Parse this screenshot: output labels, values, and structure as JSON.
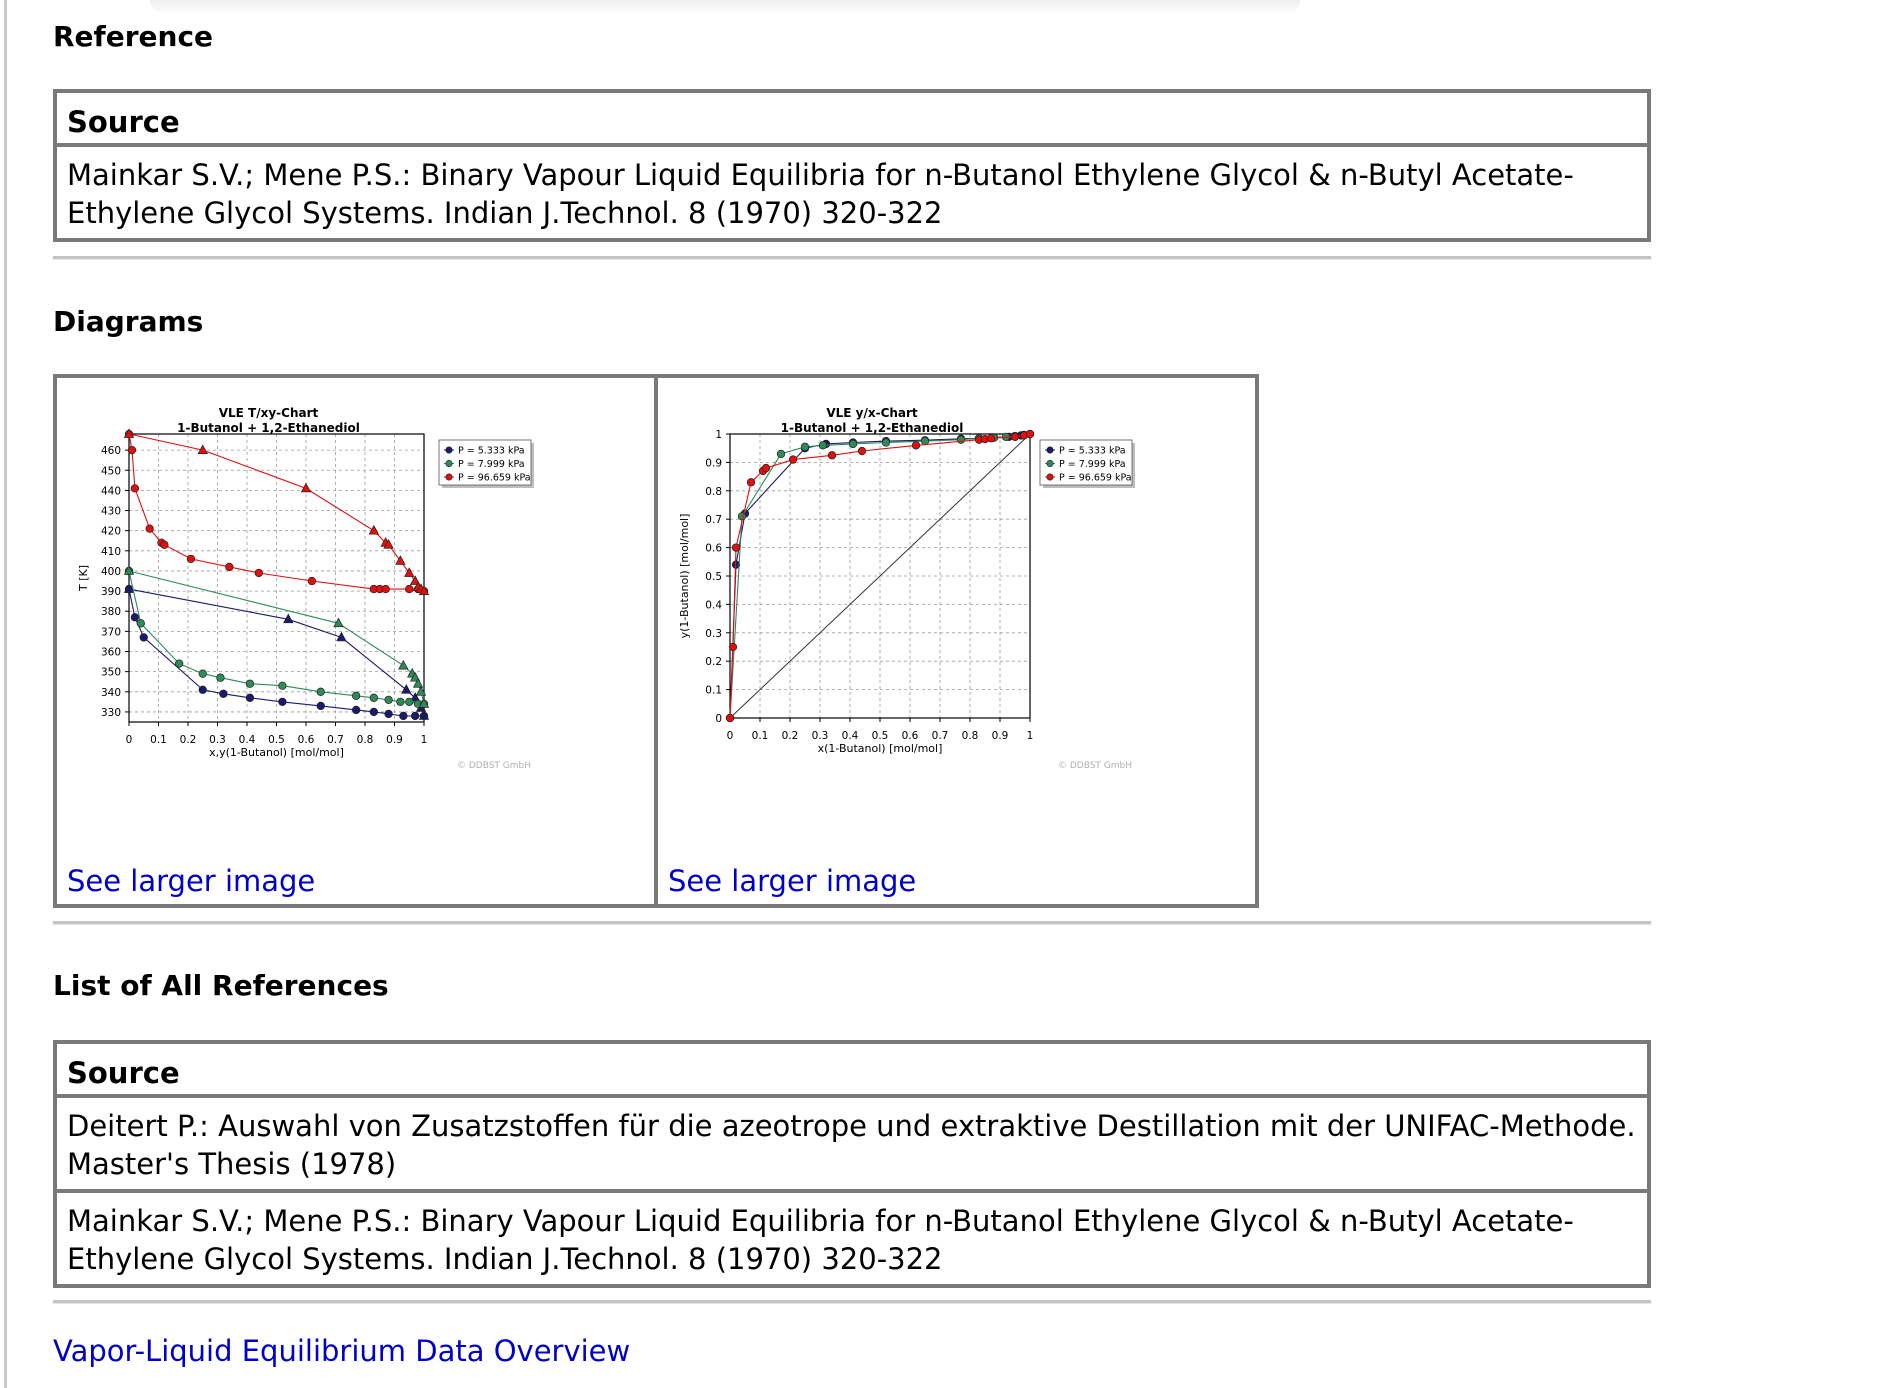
{
  "reference": {
    "heading": "Reference",
    "table_header": "Source",
    "rows": [
      "Mainkar S.V.; Mene P.S.: Binary Vapour Liquid Equilibria for n-Butanol Ethylene Glycol & n-Butyl Acetate-Ethylene Glycol Systems. Indian J.Technol. 8 (1970) 320-322"
    ]
  },
  "diagrams": {
    "heading": "Diagrams",
    "link_label": "See larger image",
    "watermark": "© DDBST GmbH"
  },
  "chart_data": [
    {
      "type": "line",
      "title": "VLE T/xy-Chart",
      "subtitle": "1-Butanol + 1,2-Ethanediol",
      "xlabel": "x,y(1-Butanol) [mol/mol]",
      "ylabel": "T [K]",
      "xlim": [
        0,
        1
      ],
      "ylim": [
        325,
        468
      ],
      "xticks": [
        "0",
        "0.1",
        "0.2",
        "0.3",
        "0.4",
        "0.5",
        "0.6",
        "0.7",
        "0.8",
        "0.9",
        "1"
      ],
      "yticks": [
        "330",
        "340",
        "350",
        "360",
        "370",
        "380",
        "390",
        "400",
        "410",
        "420",
        "430",
        "440",
        "450",
        "460"
      ],
      "grid": true,
      "legend_position": "top-right",
      "series": [
        {
          "name": "P = 5.333 kPa",
          "color": "#1a1a6e",
          "liquid": [
            [
              0,
              391
            ],
            [
              0.02,
              377
            ],
            [
              0.05,
              367
            ],
            [
              0.25,
              341
            ],
            [
              0.32,
              339
            ],
            [
              0.41,
              337
            ],
            [
              0.52,
              335
            ],
            [
              0.65,
              333
            ],
            [
              0.77,
              331
            ],
            [
              0.83,
              330
            ],
            [
              0.88,
              329
            ],
            [
              0.93,
              328
            ],
            [
              0.97,
              328
            ],
            [
              1,
              328
            ]
          ],
          "vapor": [
            [
              0,
              391
            ],
            [
              0.54,
              376
            ],
            [
              0.72,
              367
            ],
            [
              0.94,
              341
            ],
            [
              0.97,
              337
            ],
            [
              0.99,
              332
            ],
            [
              1,
              328
            ]
          ]
        },
        {
          "name": "P = 7.999 kPa",
          "color": "#2e8b57",
          "liquid": [
            [
              0,
              400
            ],
            [
              0.04,
              374
            ],
            [
              0.17,
              354
            ],
            [
              0.25,
              349
            ],
            [
              0.31,
              347
            ],
            [
              0.41,
              344
            ],
            [
              0.52,
              343
            ],
            [
              0.65,
              340
            ],
            [
              0.77,
              338
            ],
            [
              0.83,
              337
            ],
            [
              0.88,
              336
            ],
            [
              0.92,
              335
            ],
            [
              0.95,
              335
            ],
            [
              0.98,
              334
            ],
            [
              1,
              334
            ]
          ],
          "vapor": [
            [
              0,
              400
            ],
            [
              0.71,
              374
            ],
            [
              0.93,
              353
            ],
            [
              0.96,
              349
            ],
            [
              0.97,
              347
            ],
            [
              0.98,
              344
            ],
            [
              0.99,
              340
            ],
            [
              1,
              334
            ]
          ]
        },
        {
          "name": "P = 96.659 kPa",
          "color": "#e01010",
          "liquid": [
            [
              0,
              468
            ],
            [
              0.01,
              460
            ],
            [
              0.02,
              441
            ],
            [
              0.07,
              421
            ],
            [
              0.11,
              414
            ],
            [
              0.12,
              413
            ],
            [
              0.21,
              406
            ],
            [
              0.34,
              402
            ],
            [
              0.44,
              399
            ],
            [
              0.62,
              395
            ],
            [
              0.83,
              391
            ],
            [
              0.85,
              391
            ],
            [
              0.87,
              391
            ],
            [
              0.95,
              391
            ],
            [
              0.98,
              391
            ],
            [
              1,
              390
            ]
          ],
          "vapor": [
            [
              0,
              468
            ],
            [
              0.25,
              460
            ],
            [
              0.6,
              441
            ],
            [
              0.83,
              420
            ],
            [
              0.87,
              414
            ],
            [
              0.88,
              413
            ],
            [
              0.92,
              405
            ],
            [
              0.95,
              399
            ],
            [
              0.97,
              395
            ],
            [
              0.98,
              392
            ],
            [
              0.99,
              391
            ],
            [
              1,
              390
            ]
          ]
        }
      ]
    },
    {
      "type": "line",
      "title": "VLE y/x-Chart",
      "subtitle": "1-Butanol + 1,2-Ethanediol",
      "xlabel": "x(1-Butanol) [mol/mol]",
      "ylabel": "y(1-Butanol) [mol/mol]",
      "xlim": [
        0,
        1
      ],
      "ylim": [
        0,
        1
      ],
      "xticks": [
        "0",
        "0.1",
        "0.2",
        "0.3",
        "0.4",
        "0.5",
        "0.6",
        "0.7",
        "0.8",
        "0.9",
        "1"
      ],
      "yticks": [
        "0",
        "0.1",
        "0.2",
        "0.3",
        "0.4",
        "0.5",
        "0.6",
        "0.7",
        "0.8",
        "0.9",
        "1"
      ],
      "grid": true,
      "legend_position": "top-right",
      "diagonal": true,
      "series": [
        {
          "name": "P = 5.333 kPa",
          "color": "#1a1a6e",
          "points": [
            [
              0,
              0
            ],
            [
              0.02,
              0.54
            ],
            [
              0.05,
              0.72
            ],
            [
              0.25,
              0.95
            ],
            [
              0.32,
              0.965
            ],
            [
              0.41,
              0.97
            ],
            [
              0.52,
              0.975
            ],
            [
              0.65,
              0.978
            ],
            [
              0.77,
              0.983
            ],
            [
              0.83,
              0.985
            ],
            [
              0.88,
              0.988
            ],
            [
              0.93,
              0.99
            ],
            [
              0.97,
              0.995
            ],
            [
              1,
              1
            ]
          ]
        },
        {
          "name": "P = 7.999 kPa",
          "color": "#2e8b57",
          "points": [
            [
              0,
              0
            ],
            [
              0.04,
              0.71
            ],
            [
              0.17,
              0.93
            ],
            [
              0.25,
              0.955
            ],
            [
              0.31,
              0.96
            ],
            [
              0.41,
              0.965
            ],
            [
              0.52,
              0.97
            ],
            [
              0.65,
              0.975
            ],
            [
              0.77,
              0.98
            ],
            [
              0.83,
              0.985
            ],
            [
              0.88,
              0.987
            ],
            [
              0.92,
              0.99
            ],
            [
              0.95,
              0.993
            ],
            [
              0.98,
              0.997
            ],
            [
              1,
              1
            ]
          ]
        },
        {
          "name": "P = 96.659 kPa",
          "color": "#e01010",
          "points": [
            [
              0,
              0
            ],
            [
              0.01,
              0.25
            ],
            [
              0.02,
              0.6
            ],
            [
              0.07,
              0.83
            ],
            [
              0.11,
              0.87
            ],
            [
              0.12,
              0.88
            ],
            [
              0.21,
              0.91
            ],
            [
              0.34,
              0.925
            ],
            [
              0.44,
              0.94
            ],
            [
              0.62,
              0.96
            ],
            [
              0.83,
              0.98
            ],
            [
              0.85,
              0.982
            ],
            [
              0.87,
              0.985
            ],
            [
              0.95,
              0.99
            ],
            [
              0.98,
              0.995
            ],
            [
              1,
              1
            ]
          ]
        }
      ]
    }
  ],
  "all_references": {
    "heading": "List of All References",
    "table_header": "Source",
    "rows": [
      "Deitert P.: Auswahl von Zusatzstoffen für die azeotrope und extraktive Destillation mit der UNIFAC-Methode. Master's Thesis (1978)",
      "Mainkar S.V.; Mene P.S.: Binary Vapour Liquid Equilibria for n-Butanol Ethylene Glycol & n-Butyl Acetate-Ethylene Glycol Systems. Indian J.Technol. 8 (1970) 320-322"
    ]
  },
  "footer": {
    "link_label": "Vapor-Liquid Equilibrium Data Overview"
  }
}
